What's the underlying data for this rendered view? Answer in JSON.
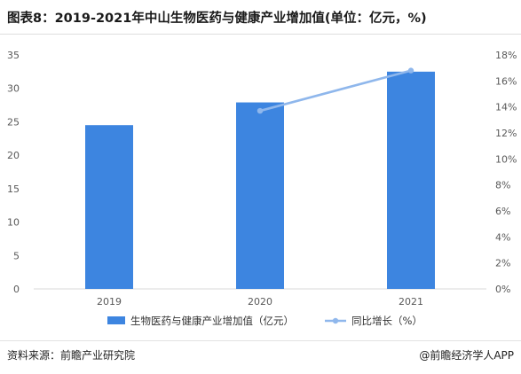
{
  "title": "图表8：2019-2021年中山生物医药与健康产业增加值(单位：亿元，%)",
  "footer": {
    "source": "资料来源：前瞻产业研究院",
    "brand": "@前瞻经济学人APP"
  },
  "colors": {
    "bar": "#3d85e0",
    "line": "#8fb7ec",
    "axis": "#d9d9d9",
    "text": "#595959"
  },
  "chart_data": {
    "type": "bar",
    "categories": [
      "2019",
      "2020",
      "2021"
    ],
    "series": [
      {
        "name": "生物医药与健康产业增加值（亿元）",
        "type": "bar",
        "axis": "left",
        "values": [
          24.5,
          27.9,
          32.5
        ]
      },
      {
        "name": "同比增长（%）",
        "type": "line",
        "axis": "right",
        "values": [
          null,
          13.7,
          16.8
        ]
      }
    ],
    "y_left": {
      "min": 0,
      "max": 35,
      "step": 5,
      "ticks": [
        "0",
        "5",
        "10",
        "15",
        "20",
        "25",
        "30",
        "35"
      ]
    },
    "y_right": {
      "min": 0,
      "max": 18,
      "step": 2,
      "ticks": [
        "0%",
        "2%",
        "4%",
        "6%",
        "8%",
        "10%",
        "12%",
        "14%",
        "16%",
        "18%"
      ]
    },
    "legend_position": "bottom",
    "grid": false
  }
}
